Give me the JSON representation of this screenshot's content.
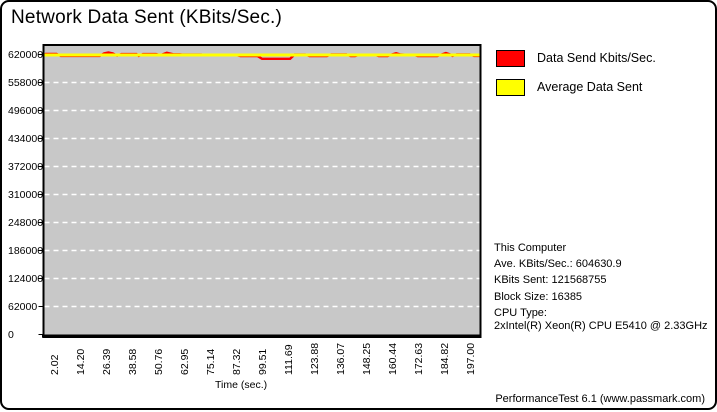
{
  "page": {
    "title": "Network Data Sent (KBits/Sec.)",
    "footer": "PerformanceTest 6.1 (www.passmark.com)"
  },
  "legend": {
    "items": [
      {
        "label": "Data Send Kbits/Sec.",
        "color": "#ff0000"
      },
      {
        "label": "Average Data Sent",
        "color": "#ffff00"
      }
    ]
  },
  "info": {
    "lines": [
      "This Computer",
      "Ave. KBits/Sec.: 604630.9",
      "KBits Sent: 121568755",
      "Block Size: 16385",
      "CPU Type:",
      "2xIntel(R) Xeon(R) CPU E5410 @ 2.33GHz"
    ]
  },
  "chart_data": {
    "type": "line",
    "title": "Network Data Sent (KBits/Sec.)",
    "xlabel": "Time (sec.)",
    "ylabel": "",
    "ylim": [
      0,
      620000
    ],
    "xlim": [
      0,
      202
    ],
    "ytick_interval": 62000,
    "yticks": [
      "620000",
      "558000",
      "496000",
      "434000",
      "372000",
      "310000",
      "248000",
      "186000",
      "124000",
      "62000",
      "0"
    ],
    "xticks": [
      "2.02",
      "14.20",
      "26.39",
      "38.58",
      "50.76",
      "62.95",
      "75.14",
      "87.32",
      "99.51",
      "111.69",
      "123.88",
      "136.07",
      "148.25",
      "160.44",
      "172.63",
      "184.82",
      "197.00"
    ],
    "grid": true,
    "grid_style": "horizontal dashed",
    "grid_color": "#ffffff",
    "plot_bg": "#c8c8c8",
    "legend_position": "top-right",
    "series": [
      {
        "name": "Data Send Kbits/Sec.",
        "color": "#ff0000",
        "points": [
          [
            0,
            617000
          ],
          [
            1,
            621000
          ],
          [
            6,
            621000
          ],
          [
            8,
            617000
          ],
          [
            26,
            617000
          ],
          [
            28,
            622500
          ],
          [
            30,
            624500
          ],
          [
            32,
            622500
          ],
          [
            34,
            617500
          ],
          [
            36,
            620800
          ],
          [
            43,
            620800
          ],
          [
            44,
            617000
          ],
          [
            46,
            620800
          ],
          [
            52,
            620800
          ],
          [
            54,
            618500
          ],
          [
            57,
            624000
          ],
          [
            60,
            620500
          ],
          [
            63,
            620500
          ],
          [
            64,
            619800
          ],
          [
            73,
            619800
          ],
          [
            74,
            619000
          ],
          [
            89,
            619000
          ],
          [
            91,
            616500
          ],
          [
            99,
            616500
          ],
          [
            101,
            610500
          ],
          [
            114,
            610500
          ],
          [
            116,
            619800
          ],
          [
            121,
            619800
          ],
          [
            123,
            616500
          ],
          [
            131,
            616500
          ],
          [
            133,
            620200
          ],
          [
            140,
            620200
          ],
          [
            142,
            616500
          ],
          [
            144,
            616500
          ],
          [
            146,
            619600
          ],
          [
            153,
            619600
          ],
          [
            155,
            616500
          ],
          [
            159,
            616500
          ],
          [
            161,
            620000
          ],
          [
            163,
            622800
          ],
          [
            165,
            620000
          ],
          [
            167,
            619600
          ],
          [
            171,
            619600
          ],
          [
            173,
            616500
          ],
          [
            182,
            616500
          ],
          [
            184,
            620000
          ],
          [
            186,
            623300
          ],
          [
            188,
            620000
          ],
          [
            189,
            617000
          ],
          [
            191,
            620200
          ],
          [
            197,
            620200
          ],
          [
            199,
            617000
          ],
          [
            202,
            617000
          ]
        ]
      },
      {
        "name": "Average Data Sent",
        "color": "#ffff00",
        "style": "horizontal-line",
        "value": 604630.9
      }
    ]
  }
}
